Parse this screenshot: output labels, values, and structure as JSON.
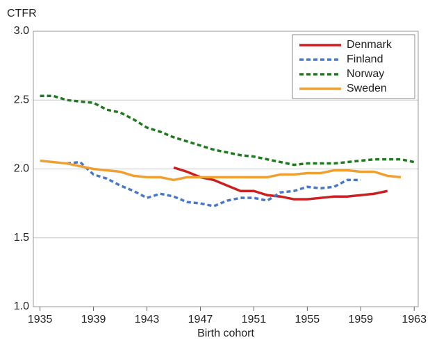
{
  "chart_data": {
    "type": "line",
    "y_label": "CTFR",
    "x_label": "Birth cohort",
    "x": [
      1935,
      1936,
      1937,
      1938,
      1939,
      1940,
      1941,
      1942,
      1943,
      1944,
      1945,
      1946,
      1947,
      1948,
      1949,
      1950,
      1951,
      1952,
      1953,
      1954,
      1955,
      1956,
      1957,
      1958,
      1959,
      1960,
      1961,
      1962,
      1963
    ],
    "series": [
      {
        "name": "Denmark",
        "color": "#cc1f1f",
        "dashed": false,
        "values": [
          null,
          null,
          null,
          null,
          null,
          null,
          null,
          null,
          null,
          null,
          2.01,
          1.98,
          1.94,
          1.92,
          1.88,
          1.84,
          1.84,
          1.81,
          1.8,
          1.78,
          1.78,
          1.79,
          1.8,
          1.8,
          1.81,
          1.82,
          1.84,
          null,
          null
        ]
      },
      {
        "name": "Finland",
        "color": "#4a78c8",
        "dashed": true,
        "values": [
          null,
          null,
          2.04,
          2.05,
          1.96,
          1.93,
          1.88,
          1.84,
          1.79,
          1.82,
          1.8,
          1.76,
          1.75,
          1.73,
          1.77,
          1.79,
          1.79,
          1.77,
          1.83,
          1.84,
          1.87,
          1.86,
          1.87,
          1.92,
          1.92,
          null,
          null,
          null,
          null
        ]
      },
      {
        "name": "Norway",
        "color": "#1f7a1f",
        "dashed": true,
        "values": [
          2.53,
          2.53,
          2.5,
          2.49,
          2.48,
          2.43,
          2.41,
          2.36,
          2.3,
          2.27,
          2.23,
          2.2,
          2.17,
          2.14,
          2.12,
          2.1,
          2.09,
          2.07,
          2.05,
          2.03,
          2.04,
          2.04,
          2.04,
          2.05,
          2.06,
          2.07,
          2.07,
          2.07,
          2.05
        ]
      },
      {
        "name": "Sweden",
        "color": "#f0a030",
        "dashed": false,
        "values": [
          2.06,
          2.05,
          2.04,
          2.02,
          2.0,
          1.99,
          1.98,
          1.95,
          1.94,
          1.94,
          1.92,
          1.94,
          1.94,
          1.94,
          1.94,
          1.94,
          1.94,
          1.94,
          1.96,
          1.96,
          1.97,
          1.97,
          1.99,
          1.99,
          1.98,
          1.98,
          1.95,
          1.94,
          null
        ]
      }
    ],
    "xlim": [
      1934.5,
      1963.3
    ],
    "xticks": [
      1935,
      1939,
      1943,
      1947,
      1951,
      1955,
      1959,
      1963
    ],
    "ylim": [
      1.0,
      3.0
    ],
    "yticks": [
      {
        "value": 1.0,
        "label": "1.0"
      },
      {
        "value": 1.5,
        "label": "1.5"
      },
      {
        "value": 2.0,
        "label": "2.0"
      },
      {
        "value": 2.5,
        "label": "2.5"
      },
      {
        "value": 3.0,
        "label": "3.0"
      }
    ],
    "grid": true,
    "legend": "top-right"
  }
}
